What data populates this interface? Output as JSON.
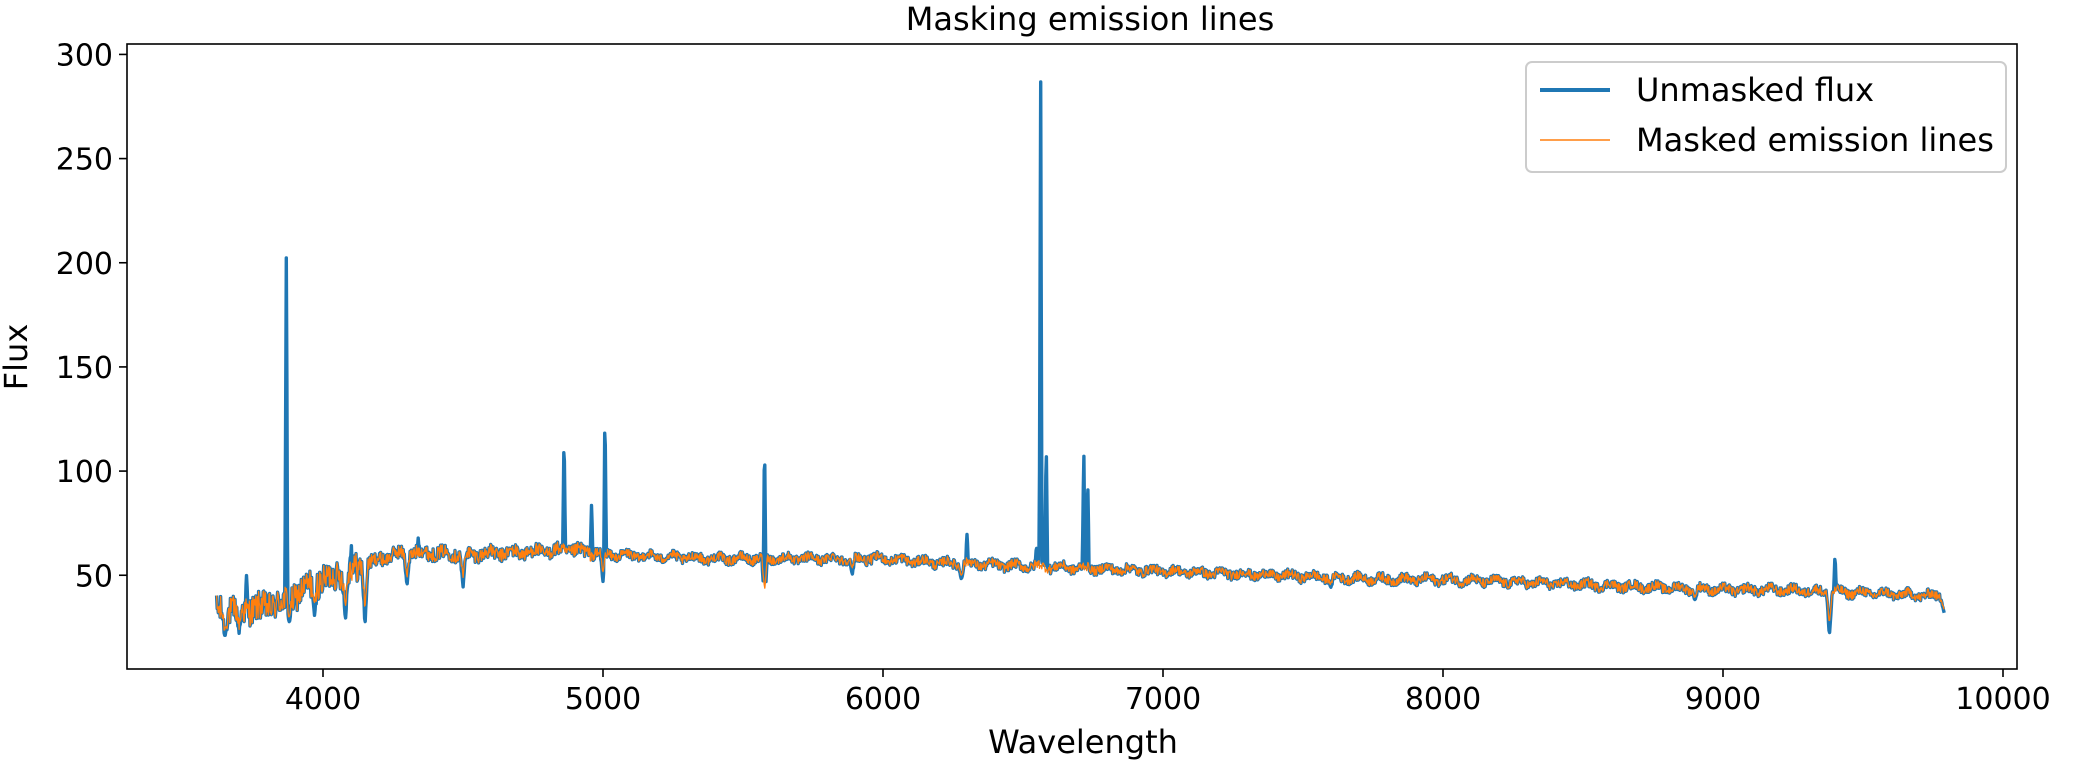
{
  "chart_data": {
    "type": "line",
    "title": "Masking emission lines",
    "xlabel": "Wavelength",
    "ylabel": "Flux",
    "xlim": [
      3300,
      10050
    ],
    "ylim": [
      5,
      305
    ],
    "xticks": [
      4000,
      5000,
      6000,
      7000,
      8000,
      9000,
      10000
    ],
    "yticks": [
      50,
      100,
      150,
      200,
      250,
      300
    ],
    "grid": false,
    "legend": "upper right",
    "colors": {
      "unmasked": "#1f77b4",
      "masked": "#ff7f0e"
    },
    "series": [
      {
        "name": "Unmasked flux",
        "continuum": [
          [
            3620,
            33
          ],
          [
            3700,
            33
          ],
          [
            3800,
            35
          ],
          [
            3880,
            38
          ],
          [
            3950,
            45
          ],
          [
            4050,
            50
          ],
          [
            4150,
            55
          ],
          [
            4250,
            60
          ],
          [
            4350,
            61
          ],
          [
            4500,
            60
          ],
          [
            4700,
            61
          ],
          [
            4900,
            62
          ],
          [
            5000,
            60
          ],
          [
            5200,
            59
          ],
          [
            5400,
            58
          ],
          [
            5600,
            58
          ],
          [
            5800,
            58
          ],
          [
            6000,
            58
          ],
          [
            6200,
            56
          ],
          [
            6400,
            55
          ],
          [
            6600,
            54
          ],
          [
            6800,
            53
          ],
          [
            7000,
            52
          ],
          [
            7200,
            51
          ],
          [
            7400,
            50
          ],
          [
            7600,
            49
          ],
          [
            7800,
            48
          ],
          [
            8000,
            48
          ],
          [
            8200,
            47
          ],
          [
            8400,
            46
          ],
          [
            8600,
            45
          ],
          [
            8800,
            44
          ],
          [
            9000,
            43
          ],
          [
            9200,
            43
          ],
          [
            9400,
            42
          ],
          [
            9600,
            41
          ],
          [
            9790,
            40
          ]
        ],
        "emission_lines": [
          [
            3727,
            50
          ],
          [
            3869,
            207
          ],
          [
            4101,
            65
          ],
          [
            4340,
            68
          ],
          [
            4861,
            118
          ],
          [
            4959,
            84
          ],
          [
            5007,
            130
          ],
          [
            5577,
            118
          ],
          [
            6300,
            70
          ],
          [
            6548,
            64
          ],
          [
            6563,
            291
          ],
          [
            6583,
            115
          ],
          [
            6717,
            111
          ],
          [
            6731,
            97
          ],
          [
            9400,
            60
          ]
        ],
        "absorption_dips": [
          [
            3650,
            20
          ],
          [
            3700,
            22
          ],
          [
            3880,
            27
          ],
          [
            3970,
            30
          ],
          [
            4080,
            28
          ],
          [
            4150,
            26
          ],
          [
            4300,
            45
          ],
          [
            4500,
            44
          ],
          [
            5000,
            47
          ],
          [
            5577,
            36
          ],
          [
            5890,
            50
          ],
          [
            6280,
            48
          ],
          [
            7600,
            44
          ],
          [
            8900,
            38
          ],
          [
            9380,
            21
          ],
          [
            9790,
            32
          ]
        ]
      },
      {
        "name": "Masked emission lines",
        "continuum": [
          [
            3620,
            33
          ],
          [
            3700,
            33
          ],
          [
            3800,
            35
          ],
          [
            3880,
            38
          ],
          [
            3950,
            45
          ],
          [
            4050,
            50
          ],
          [
            4150,
            55
          ],
          [
            4250,
            60
          ],
          [
            4350,
            61
          ],
          [
            4500,
            60
          ],
          [
            4700,
            61
          ],
          [
            4900,
            62
          ],
          [
            5000,
            60
          ],
          [
            5200,
            59
          ],
          [
            5400,
            58
          ],
          [
            5600,
            58
          ],
          [
            5800,
            58
          ],
          [
            6000,
            58
          ],
          [
            6200,
            56
          ],
          [
            6400,
            55
          ],
          [
            6600,
            54
          ],
          [
            6800,
            53
          ],
          [
            7000,
            52
          ],
          [
            7200,
            51
          ],
          [
            7400,
            50
          ],
          [
            7600,
            49
          ],
          [
            7800,
            48
          ],
          [
            8000,
            48
          ],
          [
            8200,
            47
          ],
          [
            8400,
            46
          ],
          [
            8600,
            45
          ],
          [
            8800,
            44
          ],
          [
            9000,
            43
          ],
          [
            9200,
            43
          ],
          [
            9400,
            42
          ],
          [
            9600,
            41
          ],
          [
            9790,
            40
          ]
        ]
      }
    ]
  }
}
